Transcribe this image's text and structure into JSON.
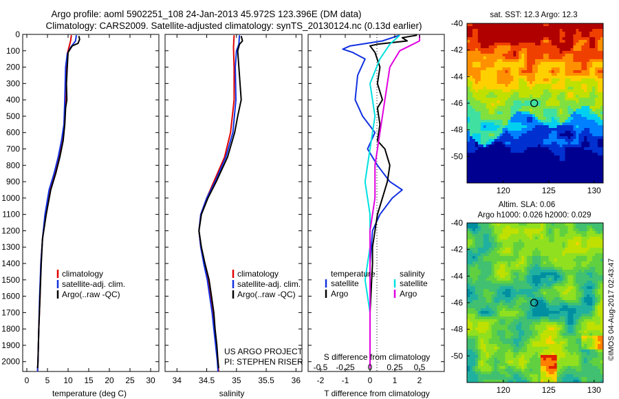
{
  "title": {
    "line1": "Argo profile: aoml 5902251_108 24-Jan-2013 45.972S 123.396E (DM data)",
    "line2": "Climatology: CARS2009. Satellite-adjusted climatology: synTS_20130124.nc (0.13d earlier)"
  },
  "colors": {
    "clim": "#e00000",
    "sat": "#1030e0",
    "argo": "#000000",
    "sat_s": "#00e0e0",
    "argo_s": "#e000e0"
  },
  "chart_data": [
    {
      "type": "line",
      "name": "temperature-panel",
      "xlabel": "temperature (deg C)",
      "xlim": [
        -1,
        32
      ],
      "ylim": [
        2060,
        0
      ],
      "xticks": [
        0,
        5,
        10,
        15,
        20,
        25,
        30
      ],
      "yticks": [
        0,
        100,
        200,
        300,
        400,
        500,
        600,
        700,
        800,
        900,
        1000,
        1100,
        1200,
        1300,
        1400,
        1500,
        1600,
        1700,
        1800,
        1900,
        2000
      ],
      "legend": [
        "climatology",
        "satellite-adj. clim.",
        "Argo(..raw -QC)"
      ],
      "series": [
        {
          "name": "climatology",
          "color": "#e00000",
          "points": [
            [
              10.8,
              5
            ],
            [
              10.6,
              40
            ],
            [
              10.2,
              80
            ],
            [
              9.8,
              120
            ],
            [
              9.6,
              200
            ],
            [
              9.4,
              400
            ],
            [
              9.0,
              550
            ],
            [
              8.5,
              650
            ],
            [
              7.8,
              750
            ],
            [
              6.8,
              850
            ],
            [
              5.6,
              950
            ],
            [
              4.5,
              1100
            ],
            [
              3.8,
              1250
            ],
            [
              3.4,
              1400
            ],
            [
              3.2,
              1600
            ],
            [
              2.9,
              1800
            ],
            [
              2.7,
              2000
            ],
            [
              2.6,
              2060
            ]
          ]
        },
        {
          "name": "satellite-adj. clim.",
          "color": "#1030e0",
          "points": [
            [
              12.0,
              5
            ],
            [
              11.8,
              40
            ],
            [
              10.6,
              80
            ],
            [
              9.8,
              120
            ],
            [
              9.4,
              200
            ],
            [
              9.2,
              400
            ],
            [
              9.0,
              550
            ],
            [
              8.4,
              650
            ],
            [
              7.6,
              750
            ],
            [
              6.6,
              850
            ],
            [
              5.4,
              950
            ],
            [
              4.4,
              1100
            ],
            [
              3.8,
              1250
            ],
            [
              3.4,
              1400
            ],
            [
              3.1,
              1600
            ],
            [
              2.9,
              1800
            ],
            [
              2.7,
              2000
            ],
            [
              2.6,
              2060
            ]
          ]
        },
        {
          "name": "Argo(..raw -QC)",
          "color": "#000000",
          "points": [
            [
              12.6,
              10
            ],
            [
              12.8,
              30
            ],
            [
              12.4,
              55
            ],
            [
              11.0,
              70
            ],
            [
              10.0,
              110
            ],
            [
              9.8,
              200
            ],
            [
              9.6,
              300
            ],
            [
              9.7,
              400
            ],
            [
              9.4,
              450
            ],
            [
              9.2,
              550
            ],
            [
              8.8,
              650
            ],
            [
              8.0,
              750
            ],
            [
              7.0,
              850
            ],
            [
              5.8,
              950
            ],
            [
              4.7,
              1100
            ],
            [
              3.8,
              1250
            ],
            [
              3.5,
              1400
            ],
            [
              3.2,
              1600
            ],
            [
              2.9,
              1800
            ],
            [
              2.7,
              2000
            ],
            [
              2.6,
              2040
            ]
          ]
        }
      ]
    },
    {
      "type": "line",
      "name": "salinity-panel",
      "xlabel": "salinity",
      "xlim": [
        33.8,
        36.1
      ],
      "ylim": [
        2060,
        0
      ],
      "xticks": [
        34,
        34.5,
        35,
        35.5,
        36
      ],
      "xticklabels": [
        "34",
        "34.5",
        "35",
        "35.5",
        "36"
      ],
      "legend": [
        "climatology",
        "satellite-adj. clim.",
        "Argo(..raw -QC)"
      ],
      "project": [
        "US ARGO PROJECT",
        "PI: STEPHEN RISER"
      ],
      "series": [
        {
          "name": "climatology",
          "color": "#e00000",
          "points": [
            [
              34.96,
              5
            ],
            [
              34.95,
              80
            ],
            [
              34.96,
              200
            ],
            [
              34.96,
              400
            ],
            [
              34.9,
              600
            ],
            [
              34.8,
              750
            ],
            [
              34.62,
              900
            ],
            [
              34.5,
              1000
            ],
            [
              34.4,
              1100
            ],
            [
              34.37,
              1200
            ],
            [
              34.4,
              1300
            ],
            [
              34.46,
              1400
            ],
            [
              34.52,
              1500
            ],
            [
              34.56,
              1600
            ],
            [
              34.6,
              1700
            ],
            [
              34.63,
              1800
            ],
            [
              34.66,
              1900
            ],
            [
              34.69,
              2000
            ],
            [
              34.7,
              2060
            ]
          ]
        },
        {
          "name": "satellite-adj. clim.",
          "color": "#1030e0",
          "points": [
            [
              35.05,
              5
            ],
            [
              35.04,
              60
            ],
            [
              35.0,
              100
            ],
            [
              34.98,
              200
            ],
            [
              34.99,
              400
            ],
            [
              34.94,
              600
            ],
            [
              34.82,
              750
            ],
            [
              34.64,
              900
            ],
            [
              34.5,
              1000
            ],
            [
              34.4,
              1100
            ],
            [
              34.37,
              1200
            ],
            [
              34.4,
              1300
            ],
            [
              34.45,
              1400
            ],
            [
              34.51,
              1500
            ],
            [
              34.55,
              1600
            ],
            [
              34.59,
              1700
            ],
            [
              34.62,
              1800
            ],
            [
              34.65,
              1900
            ],
            [
              34.68,
              2000
            ],
            [
              34.69,
              2060
            ]
          ]
        },
        {
          "name": "Argo(..raw -QC)",
          "color": "#000000",
          "points": [
            [
              35.08,
              10
            ],
            [
              35.1,
              40
            ],
            [
              35.05,
              60
            ],
            [
              35.02,
              100
            ],
            [
              35.04,
              200
            ],
            [
              35.06,
              300
            ],
            [
              35.08,
              400
            ],
            [
              35.02,
              500
            ],
            [
              34.97,
              600
            ],
            [
              34.85,
              750
            ],
            [
              34.66,
              900
            ],
            [
              34.52,
              1000
            ],
            [
              34.41,
              1100
            ],
            [
              34.37,
              1200
            ],
            [
              34.41,
              1300
            ],
            [
              34.47,
              1400
            ],
            [
              34.54,
              1500
            ],
            [
              34.58,
              1600
            ],
            [
              34.62,
              1700
            ],
            [
              34.64,
              1800
            ],
            [
              34.67,
              1900
            ],
            [
              34.69,
              2000
            ],
            [
              34.7,
              2040
            ]
          ]
        }
      ]
    },
    {
      "type": "line",
      "name": "difference-panel",
      "xlabel": "T difference from climatology",
      "xlabel_top": "S difference from climatology",
      "xlim": [
        -2.5,
        3
      ],
      "ylim": [
        2060,
        0
      ],
      "xticks": [
        -2,
        -1,
        0,
        1,
        2
      ],
      "top_ticklabels": [
        "-0.5",
        "-0.25",
        "0",
        "0.25",
        "0.5"
      ],
      "legend_headers": [
        "temperature",
        "salinity"
      ],
      "legend": [
        "satellite",
        "Argo",
        "satellite",
        "Argo"
      ],
      "series": [
        {
          "name": "T satellite",
          "color": "#1030e0",
          "points": [
            [
              1.2,
              5
            ],
            [
              0.5,
              40
            ],
            [
              -0.8,
              70
            ],
            [
              -1.1,
              90
            ],
            [
              -0.7,
              110
            ],
            [
              -0.2,
              150
            ],
            [
              -0.5,
              250
            ],
            [
              -0.6,
              400
            ],
            [
              -0.3,
              500
            ],
            [
              0.2,
              600
            ],
            [
              -0.1,
              700
            ],
            [
              0.3,
              800
            ],
            [
              0.8,
              900
            ],
            [
              1.3,
              950
            ],
            [
              0.9,
              1000
            ],
            [
              0.4,
              1100
            ],
            [
              0.1,
              1200
            ],
            [
              0.0,
              1400
            ],
            [
              0.0,
              1700
            ],
            [
              0.0,
              2000
            ]
          ]
        },
        {
          "name": "T Argo",
          "color": "#000000",
          "points": [
            [
              1.9,
              5
            ],
            [
              1.3,
              20
            ],
            [
              1.5,
              40
            ],
            [
              0.3,
              60
            ],
            [
              0.0,
              70
            ],
            [
              0.2,
              110
            ],
            [
              0.4,
              200
            ],
            [
              0.3,
              300
            ],
            [
              0.5,
              400
            ],
            [
              0.3,
              450
            ],
            [
              0.4,
              550
            ],
            [
              0.3,
              650
            ],
            [
              0.6,
              700
            ],
            [
              0.8,
              800
            ],
            [
              0.7,
              900
            ],
            [
              0.6,
              950
            ],
            [
              0.5,
              1000
            ],
            [
              0.3,
              1100
            ],
            [
              0.2,
              1200
            ],
            [
              0.1,
              1300
            ],
            [
              0.1,
              1400
            ],
            [
              0.0,
              1700
            ],
            [
              0.0,
              2040
            ]
          ]
        },
        {
          "name": "S satellite",
          "color": "#00e0e0",
          "points": [
            [
              0.3,
              5
            ],
            [
              0.2,
              60
            ],
            [
              0.1,
              150
            ],
            [
              0.0,
              300
            ],
            [
              0.05,
              500
            ],
            [
              0.0,
              700
            ],
            [
              -0.05,
              900
            ],
            [
              0.0,
              1100
            ],
            [
              0.0,
              1300
            ],
            [
              -0.05,
              1500
            ],
            [
              0.0,
              1700
            ],
            [
              0.0,
              2000
            ]
          ]
        },
        {
          "name": "S Argo",
          "color": "#e000e0",
          "points": [
            [
              0.5,
              5
            ],
            [
              0.5,
              40
            ],
            [
              0.4,
              70
            ],
            [
              0.3,
              100
            ],
            [
              0.2,
              200
            ],
            [
              0.15,
              400
            ],
            [
              0.1,
              600
            ],
            [
              0.05,
              800
            ],
            [
              0.05,
              1000
            ],
            [
              0.0,
              1200
            ],
            [
              0.0,
              1400
            ],
            [
              0.0,
              1700
            ],
            [
              0.0,
              2040
            ]
          ]
        }
      ]
    },
    {
      "type": "heatmap",
      "name": "sst-map",
      "title": "sat. SST: 12.3 Argo: 12.3",
      "xlim": [
        116,
        131
      ],
      "ylim": [
        -52,
        -40
      ],
      "xticks": [
        120,
        125,
        130
      ],
      "yticks": [
        -40,
        -42,
        -44,
        -46,
        -48,
        -50
      ],
      "marker": [
        123.4,
        -46.0
      ],
      "palette": [
        "#000090",
        "#0030d0",
        "#0080ff",
        "#00d0f0",
        "#40e0a0",
        "#80e040",
        "#c0e000",
        "#ffd000",
        "#ff9000",
        "#f04000",
        "#b00000"
      ]
    },
    {
      "type": "heatmap",
      "name": "sla-map",
      "title": [
        "Altim. SLA: 0.06",
        "Argo h1000: 0.026 h2000: 0.029"
      ],
      "xlim": [
        116,
        131
      ],
      "ylim": [
        -52,
        -40
      ],
      "xticks": [
        120,
        125,
        130
      ],
      "yticks": [
        -40,
        -42,
        -44,
        -46,
        -48,
        -50
      ],
      "marker": [
        123.4,
        -46.0
      ],
      "palette": [
        "#008fa0",
        "#20b0a0",
        "#40c070",
        "#60d040",
        "#90e020",
        "#c0e000",
        "#ffd000",
        "#ff8000",
        "#e02000"
      ]
    }
  ],
  "side_text": "©IMOS 04-Aug-2017 02:43:47"
}
